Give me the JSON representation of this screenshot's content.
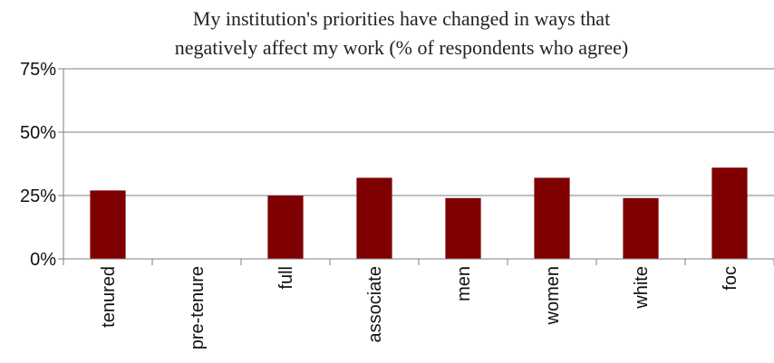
{
  "chart_data": {
    "type": "bar",
    "title_lines": [
      "My institution's priorities have changed in ways that",
      "negatively affect my work (% of respondents who agree)"
    ],
    "categories": [
      "tenured",
      "pre-tenure",
      "full",
      "associate",
      "men",
      "women",
      "white",
      "foc"
    ],
    "values": [
      27,
      0,
      25,
      32,
      24,
      32,
      24,
      36
    ],
    "y_ticks": [
      {
        "value": 75,
        "label": "75%"
      },
      {
        "value": 50,
        "label": "50%"
      },
      {
        "value": 25,
        "label": "25%"
      },
      {
        "value": 0,
        "label": "0%"
      }
    ],
    "ylim": [
      0,
      75
    ],
    "xlabel": "",
    "ylabel": "",
    "grid": true,
    "legend": "none",
    "colors": {
      "bar": "#7f0000",
      "grid": "#7f7f7f",
      "axis": "#7f7f7f"
    }
  }
}
